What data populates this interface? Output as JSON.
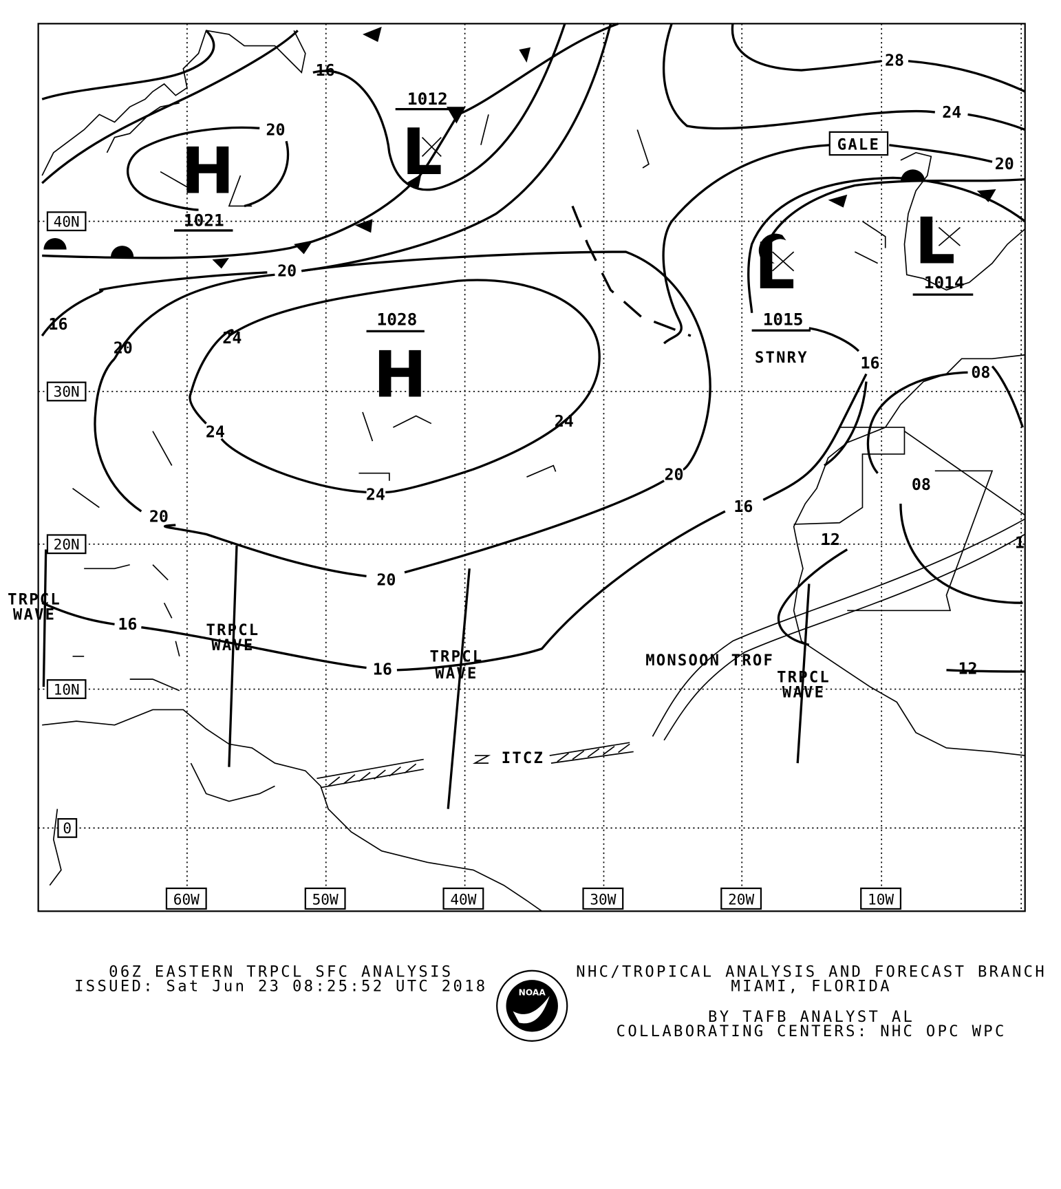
{
  "map": {
    "pressure_centers": [
      {
        "type": "H",
        "value": "1021"
      },
      {
        "type": "L",
        "value": "1012"
      },
      {
        "type": "H",
        "value": "1028"
      },
      {
        "type": "L",
        "value": "1015"
      },
      {
        "type": "L",
        "value": "1014"
      }
    ],
    "isobar_labels": [
      "16",
      "20",
      "20",
      "16",
      "20",
      "24",
      "24",
      "24",
      "24",
      "20",
      "20",
      "20",
      "16",
      "16",
      "16",
      "16",
      "28",
      "24",
      "20",
      "08",
      "08",
      "12",
      "12",
      "1"
    ],
    "features": {
      "stationary": "STNRY",
      "gale": "GALE",
      "tropical_wave_line1": "TRPCL",
      "tropical_wave_line2": "WAVE",
      "monsoon_trough": "MONSOON TROF",
      "itcz": "ITCZ"
    },
    "latitude_labels": [
      "40N",
      "30N",
      "20N",
      "10N",
      "0"
    ],
    "longitude_labels": [
      "60W",
      "50W",
      "40W",
      "30W",
      "20W",
      "10W"
    ]
  },
  "footer": {
    "title": "06Z EASTERN TRPCL SFC ANALYSIS",
    "issued": "ISSUED: Sat Jun 23 08:25:52 UTC 2018",
    "branch": "NHC/TROPICAL ANALYSIS AND FORECAST BRANCH",
    "location": "MIAMI,  FLORIDA",
    "analyst": "BY TAFB ANALYST  AL",
    "collaborating": "COLLABORATING CENTERS: NHC OPC WPC",
    "logo_text": "NOAA"
  },
  "colors": {
    "ink": "#000000",
    "background": "#ffffff"
  }
}
